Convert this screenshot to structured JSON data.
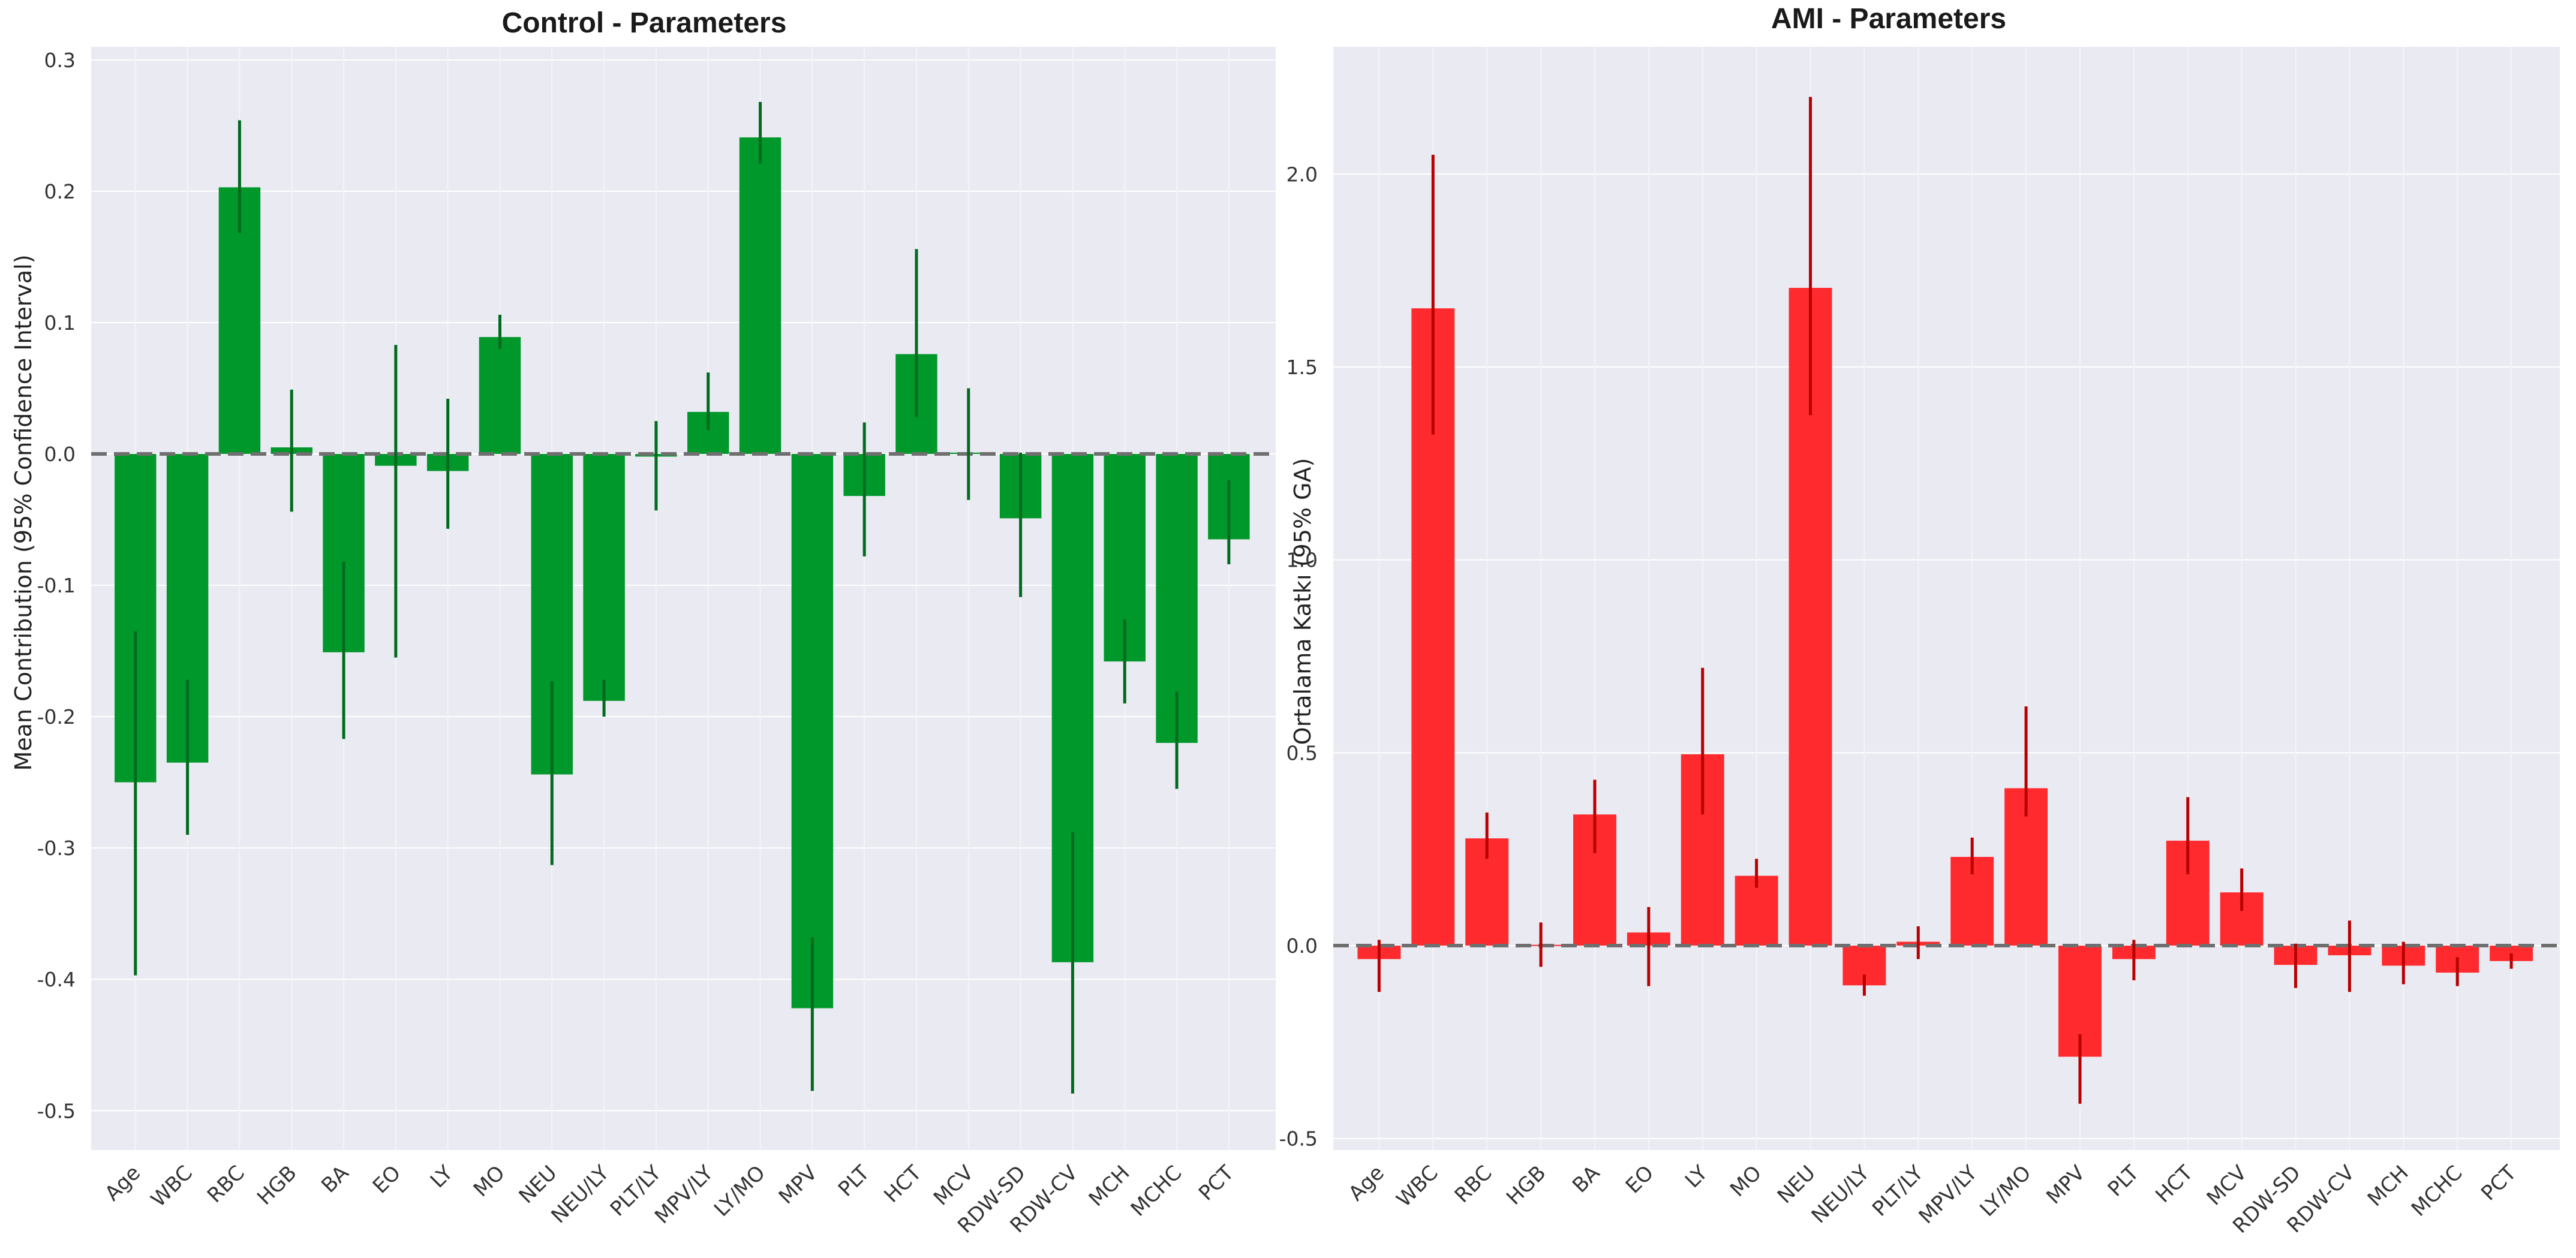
{
  "figure": {
    "type": "bar_with_error",
    "panels": 2
  },
  "chart_data": [
    {
      "type": "bar",
      "title": "Control - Parameters",
      "xlabel": "",
      "ylabel": "Mean Contribution (95% Confidence Interval)",
      "ylim": [
        -0.53,
        0.31
      ],
      "yticks": [
        0.3,
        0.2,
        0.1,
        0.0,
        -0.1,
        -0.2,
        -0.3,
        -0.4,
        -0.5
      ],
      "ytick_labels": [
        "0.3",
        "0.2",
        "0.1",
        "0.0",
        "-0.1",
        "-0.2",
        "-0.3",
        "-0.4",
        "-0.5"
      ],
      "bar_color": "#00982a",
      "error_color": "#006b1e",
      "categories": [
        "Age",
        "WBC",
        "RBC",
        "HGB",
        "BA",
        "EO",
        "LY",
        "MO",
        "NEU",
        "NEU/LY",
        "PLT/LY",
        "MPV/LY",
        "LY/MO",
        "MPV",
        "PLT",
        "HCT",
        "MCV",
        "RDW-SD",
        "RDW-CV",
        "MCH",
        "MCHC",
        "PCT"
      ],
      "values": [
        -0.25,
        -0.235,
        0.203,
        0.005,
        -0.151,
        -0.009,
        -0.013,
        0.089,
        -0.244,
        -0.188,
        -0.002,
        0.032,
        0.241,
        -0.422,
        -0.032,
        0.076,
        0.001,
        -0.049,
        -0.387,
        -0.158,
        -0.22,
        -0.065
      ],
      "err_low": [
        -0.397,
        -0.29,
        0.168,
        -0.044,
        -0.217,
        -0.155,
        -0.057,
        0.08,
        -0.313,
        -0.2,
        -0.043,
        0.018,
        0.221,
        -0.485,
        -0.078,
        0.028,
        -0.035,
        -0.109,
        -0.487,
        -0.19,
        -0.255,
        -0.084
      ],
      "err_high": [
        -0.135,
        -0.172,
        0.254,
        0.049,
        -0.082,
        0.083,
        0.042,
        0.106,
        -0.173,
        -0.172,
        0.025,
        0.062,
        0.268,
        -0.368,
        0.024,
        0.156,
        0.05,
        0.001,
        -0.288,
        -0.126,
        -0.181,
        -0.02
      ]
    },
    {
      "type": "bar",
      "title": "AMI - Parameters",
      "xlabel": "",
      "ylabel": "Ortalama Katkı (95% GA)",
      "ylim": [
        -0.53,
        2.33
      ],
      "yticks": [
        2.0,
        1.5,
        1.0,
        0.5,
        0.0,
        -0.5
      ],
      "ytick_labels": [
        "2.0",
        "1.5",
        "1.0",
        "0.5",
        "0.0",
        "-0.5"
      ],
      "bar_color": "#ff2a2e",
      "error_color": "#b80000",
      "categories": [
        "Age",
        "WBC",
        "RBC",
        "HGB",
        "BA",
        "EO",
        "LY",
        "MO",
        "NEU",
        "NEU/LY",
        "PLT/LY",
        "MPV/LY",
        "LY/MO",
        "MPV",
        "PLT",
        "HCT",
        "MCV",
        "RDW-SD",
        "RDW-CV",
        "MCH",
        "MCHC",
        "PCT"
      ],
      "values": [
        -0.035,
        1.652,
        0.278,
        0.002,
        0.34,
        0.034,
        0.496,
        0.181,
        1.705,
        -0.103,
        0.01,
        0.23,
        0.408,
        -0.288,
        -0.035,
        0.272,
        0.138,
        -0.05,
        -0.025,
        -0.052,
        -0.07,
        -0.04
      ],
      "err_low": [
        -0.12,
        1.325,
        0.225,
        -0.055,
        0.24,
        -0.105,
        0.34,
        0.15,
        1.375,
        -0.13,
        -0.035,
        0.185,
        0.335,
        -0.41,
        -0.09,
        0.185,
        0.09,
        -0.11,
        -0.12,
        -0.1,
        -0.105,
        -0.06
      ],
      "err_high": [
        0.015,
        2.05,
        0.345,
        0.06,
        0.43,
        0.1,
        0.72,
        0.225,
        2.2,
        -0.075,
        0.05,
        0.28,
        0.62,
        -0.23,
        0.015,
        0.385,
        0.2,
        0.005,
        0.065,
        0.01,
        -0.03,
        -0.02
      ]
    }
  ]
}
